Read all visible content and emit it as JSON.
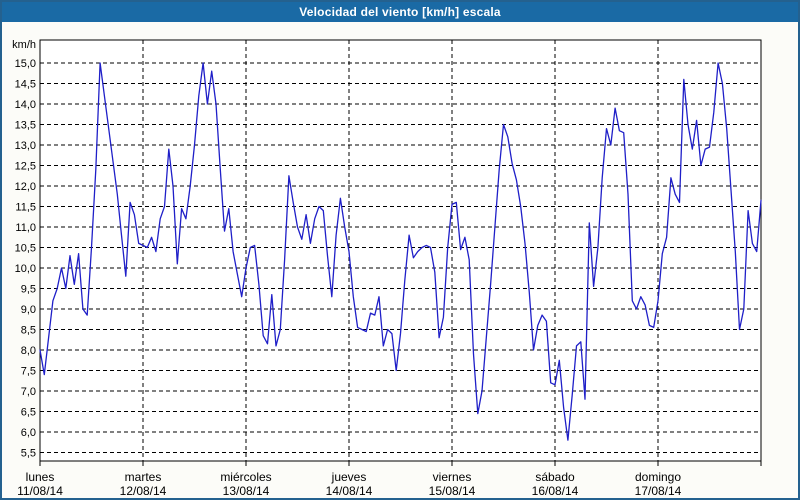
{
  "title": "Velocidad del viento [km/h] escala",
  "colors": {
    "titlebar_bg": "#1a6aa5",
    "frame_border": "#24618f",
    "page_bg": "#fcfcf8",
    "plot_bg": "#ffffff",
    "line": "#1f1fc8",
    "grid": "#000000",
    "text": "#000000"
  },
  "chart_data": {
    "type": "line",
    "title": "Velocidad del viento [km/h] escala",
    "unit_label": "km/h",
    "ylabel": "km/h",
    "ylim": [
      5.3,
      15.55
    ],
    "y_tick_step": 0.5,
    "y_ticks": [
      "15,0",
      "14,5",
      "14,0",
      "13,5",
      "13,0",
      "12,5",
      "12,0",
      "11,5",
      "11,0",
      "10,5",
      "10,0",
      "9,5",
      "9,0",
      "8,5",
      "8,0",
      "7,5",
      "7,0",
      "6,5",
      "6,0",
      "5,5"
    ],
    "y_tick_values": [
      15.0,
      14.5,
      14.0,
      13.5,
      13.0,
      12.5,
      12.0,
      11.5,
      11.0,
      10.5,
      10.0,
      9.5,
      9.0,
      8.5,
      8.0,
      7.5,
      7.0,
      6.5,
      6.0,
      5.5
    ],
    "grid": "dashed",
    "legend": "none",
    "x_days": [
      {
        "name": "lunes",
        "date": "11/08/14"
      },
      {
        "name": "martes",
        "date": "12/08/14"
      },
      {
        "name": "miércoles",
        "date": "13/08/14"
      },
      {
        "name": "jueves",
        "date": "14/08/14"
      },
      {
        "name": "viernes",
        "date": "15/08/14"
      },
      {
        "name": "sábado",
        "date": "16/08/14"
      },
      {
        "name": "domingo",
        "date": "17/08/14"
      }
    ],
    "sampling": "hourly (approx., read from plot)",
    "x_hours_range": [
      0,
      168
    ],
    "values": [
      8.0,
      7.4,
      8.3,
      9.2,
      9.5,
      10.0,
      9.5,
      10.3,
      9.6,
      10.35,
      9.0,
      8.85,
      10.5,
      12.4,
      15.0,
      14.2,
      13.4,
      12.6,
      11.8,
      10.8,
      9.8,
      11.6,
      11.3,
      10.6,
      10.55,
      10.5,
      10.75,
      10.4,
      11.2,
      11.5,
      12.9,
      12.0,
      10.1,
      11.45,
      11.2,
      12.0,
      13.0,
      14.2,
      15.0,
      14.0,
      14.8,
      14.0,
      12.4,
      10.9,
      11.45,
      10.4,
      9.85,
      9.3,
      10.0,
      10.5,
      10.55,
      9.6,
      8.35,
      8.15,
      9.35,
      8.1,
      8.5,
      10.2,
      12.25,
      11.6,
      11.0,
      10.7,
      11.3,
      10.6,
      11.2,
      11.5,
      11.4,
      10.3,
      9.3,
      10.8,
      11.7,
      11.0,
      10.4,
      9.3,
      8.55,
      8.5,
      8.45,
      8.9,
      8.85,
      9.3,
      8.1,
      8.5,
      8.4,
      7.5,
      8.4,
      9.7,
      10.8,
      10.25,
      10.4,
      10.5,
      10.55,
      10.5,
      9.9,
      8.3,
      8.8,
      10.5,
      11.55,
      11.6,
      10.45,
      10.75,
      10.2,
      7.9,
      6.45,
      7.0,
      8.3,
      9.6,
      11.0,
      12.4,
      13.5,
      13.2,
      12.55,
      12.15,
      11.5,
      10.6,
      9.4,
      8.0,
      8.6,
      8.85,
      8.7,
      7.2,
      7.15,
      7.75,
      6.6,
      5.8,
      6.9,
      8.1,
      8.2,
      6.8,
      11.1,
      9.55,
      10.5,
      12.2,
      13.4,
      13.0,
      13.9,
      13.35,
      13.3,
      11.8,
      9.2,
      9.0,
      9.3,
      9.1,
      8.6,
      8.55,
      9.2,
      10.35,
      10.75,
      12.2,
      11.8,
      11.6,
      14.6,
      13.5,
      12.9,
      13.6,
      12.5,
      12.9,
      12.95,
      13.8,
      15.0,
      14.5,
      13.4,
      11.9,
      10.4,
      8.5,
      9.0,
      11.4,
      10.6,
      10.4,
      11.65
    ]
  }
}
